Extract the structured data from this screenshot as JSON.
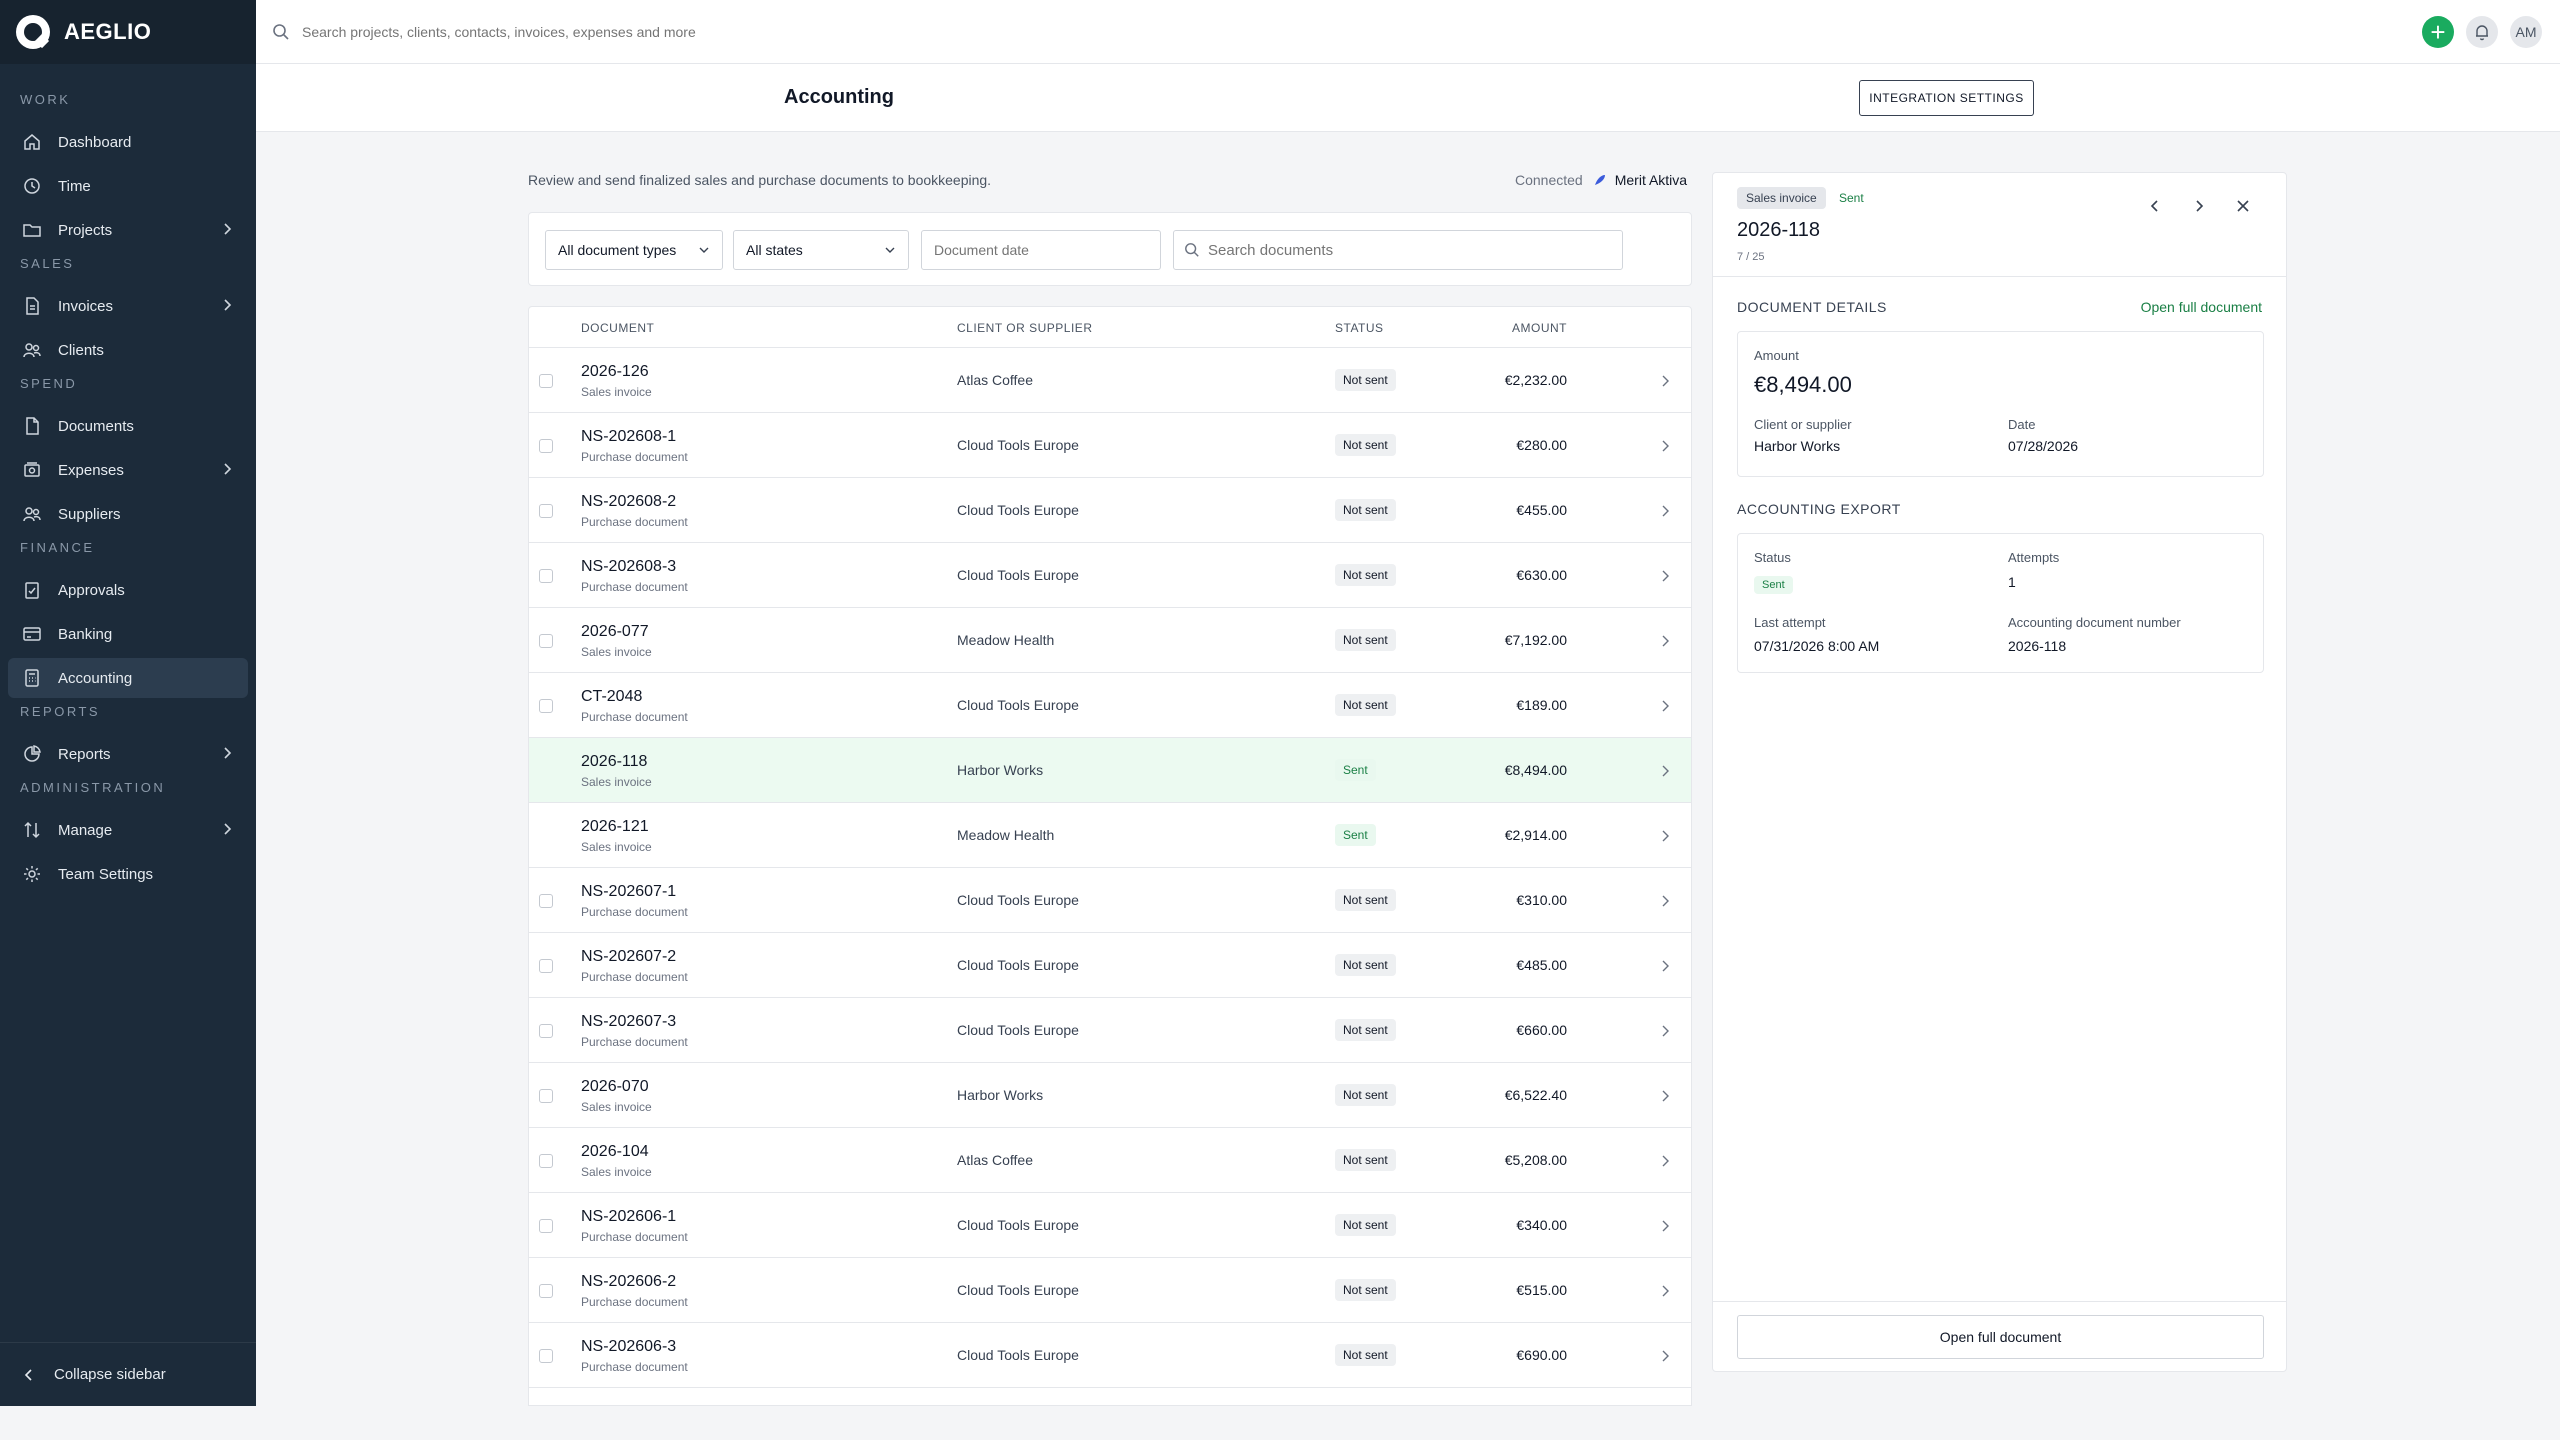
{
  "brand": {
    "name": "AEGLIO"
  },
  "topbar": {
    "search_placeholder": "Search projects, clients, contacts, invoices, expenses and more",
    "add_label": "+",
    "avatar_initials": "AM"
  },
  "sidebar": {
    "sections": [
      {
        "label": "WORK",
        "items": [
          {
            "label": "Dashboard",
            "icon": "home-icon",
            "chevron": false
          },
          {
            "label": "Time",
            "icon": "clock-icon",
            "chevron": false
          },
          {
            "label": "Projects",
            "icon": "folder-icon",
            "chevron": true
          }
        ]
      },
      {
        "label": "SALES",
        "items": [
          {
            "label": "Invoices",
            "icon": "file-icon",
            "chevron": true
          },
          {
            "label": "Clients",
            "icon": "users-icon",
            "chevron": false
          }
        ]
      },
      {
        "label": "SPEND",
        "items": [
          {
            "label": "Documents",
            "icon": "document-icon",
            "chevron": false
          },
          {
            "label": "Expenses",
            "icon": "receipt-icon",
            "chevron": true
          },
          {
            "label": "Suppliers",
            "icon": "users-icon",
            "chevron": false
          }
        ]
      },
      {
        "label": "FINANCE",
        "items": [
          {
            "label": "Approvals",
            "icon": "clipboard-check-icon",
            "chevron": false
          },
          {
            "label": "Banking",
            "icon": "card-icon",
            "chevron": false
          },
          {
            "label": "Accounting",
            "icon": "calculator-icon",
            "chevron": false,
            "active": true
          }
        ]
      },
      {
        "label": "REPORTS",
        "items": [
          {
            "label": "Reports",
            "icon": "pie-chart-icon",
            "chevron": true
          }
        ]
      },
      {
        "label": "ADMINISTRATION",
        "items": [
          {
            "label": "Manage",
            "icon": "sort-icon",
            "chevron": true
          },
          {
            "label": "Team Settings",
            "icon": "gear-icon",
            "chevron": false
          }
        ]
      }
    ],
    "collapse_label": "Collapse sidebar"
  },
  "header": {
    "title": "Accounting",
    "integration_button": "INTEGRATION SETTINGS"
  },
  "main": {
    "intro": "Review and send finalized sales and purchase documents to bookkeeping.",
    "connected_label": "Connected",
    "provider": "Merit Aktiva",
    "filters": {
      "doc_type": "All document types",
      "state": "All states",
      "date_placeholder": "Document date",
      "search_placeholder": "Search documents"
    },
    "columns": {
      "document": "DOCUMENT",
      "client": "CLIENT OR SUPPLIER",
      "status": "STATUS",
      "amount": "AMOUNT"
    },
    "rows": [
      {
        "num": "2026-126",
        "type": "Sales invoice",
        "client": "Atlas Coffee",
        "status": "Not sent",
        "amount": "€2,232.00"
      },
      {
        "num": "NS-202608-1",
        "type": "Purchase document",
        "client": "Cloud Tools Europe",
        "status": "Not sent",
        "amount": "€280.00"
      },
      {
        "num": "NS-202608-2",
        "type": "Purchase document",
        "client": "Cloud Tools Europe",
        "status": "Not sent",
        "amount": "€455.00"
      },
      {
        "num": "NS-202608-3",
        "type": "Purchase document",
        "client": "Cloud Tools Europe",
        "status": "Not sent",
        "amount": "€630.00"
      },
      {
        "num": "2026-077",
        "type": "Sales invoice",
        "client": "Meadow Health",
        "status": "Not sent",
        "amount": "€7,192.00"
      },
      {
        "num": "CT-2048",
        "type": "Purchase document",
        "client": "Cloud Tools Europe",
        "status": "Not sent",
        "amount": "€189.00"
      },
      {
        "num": "2026-118",
        "type": "Sales invoice",
        "client": "Harbor Works",
        "status": "Sent",
        "amount": "€8,494.00",
        "selected": true
      },
      {
        "num": "2026-121",
        "type": "Sales invoice",
        "client": "Meadow Health",
        "status": "Sent",
        "amount": "€2,914.00"
      },
      {
        "num": "NS-202607-1",
        "type": "Purchase document",
        "client": "Cloud Tools Europe",
        "status": "Not sent",
        "amount": "€310.00"
      },
      {
        "num": "NS-202607-2",
        "type": "Purchase document",
        "client": "Cloud Tools Europe",
        "status": "Not sent",
        "amount": "€485.00"
      },
      {
        "num": "NS-202607-3",
        "type": "Purchase document",
        "client": "Cloud Tools Europe",
        "status": "Not sent",
        "amount": "€660.00"
      },
      {
        "num": "2026-070",
        "type": "Sales invoice",
        "client": "Harbor Works",
        "status": "Not sent",
        "amount": "€6,522.40"
      },
      {
        "num": "2026-104",
        "type": "Sales invoice",
        "client": "Atlas Coffee",
        "status": "Not sent",
        "amount": "€5,208.00"
      },
      {
        "num": "NS-202606-1",
        "type": "Purchase document",
        "client": "Cloud Tools Europe",
        "status": "Not sent",
        "amount": "€340.00"
      },
      {
        "num": "NS-202606-2",
        "type": "Purchase document",
        "client": "Cloud Tools Europe",
        "status": "Not sent",
        "amount": "€515.00"
      },
      {
        "num": "NS-202606-3",
        "type": "Purchase document",
        "client": "Cloud Tools Europe",
        "status": "Not sent",
        "amount": "€690.00"
      }
    ]
  },
  "panel": {
    "type_badge": "Sales invoice",
    "status_badge": "Sent",
    "title": "2026-118",
    "position": "7 / 25",
    "details_heading": "DOCUMENT DETAILS",
    "open_link": "Open full document",
    "amount_label": "Amount",
    "amount_value": "€8,494.00",
    "client_label": "Client or supplier",
    "client_value": "Harbor Works",
    "date_label": "Date",
    "date_value": "07/28/2026",
    "export_heading": "ACCOUNTING EXPORT",
    "status_label": "Status",
    "status_value": "Sent",
    "attempts_label": "Attempts",
    "attempts_value": "1",
    "last_attempt_label": "Last attempt",
    "last_attempt_value": "07/31/2026 8:00 AM",
    "acc_num_label": "Accounting document number",
    "acc_num_value": "2026-118",
    "open_button": "Open full document"
  },
  "colors": {
    "sidebar_bg": "#1c2b3a",
    "accent_green": "#1aab5f",
    "selected_row": "#ecfaf1"
  }
}
